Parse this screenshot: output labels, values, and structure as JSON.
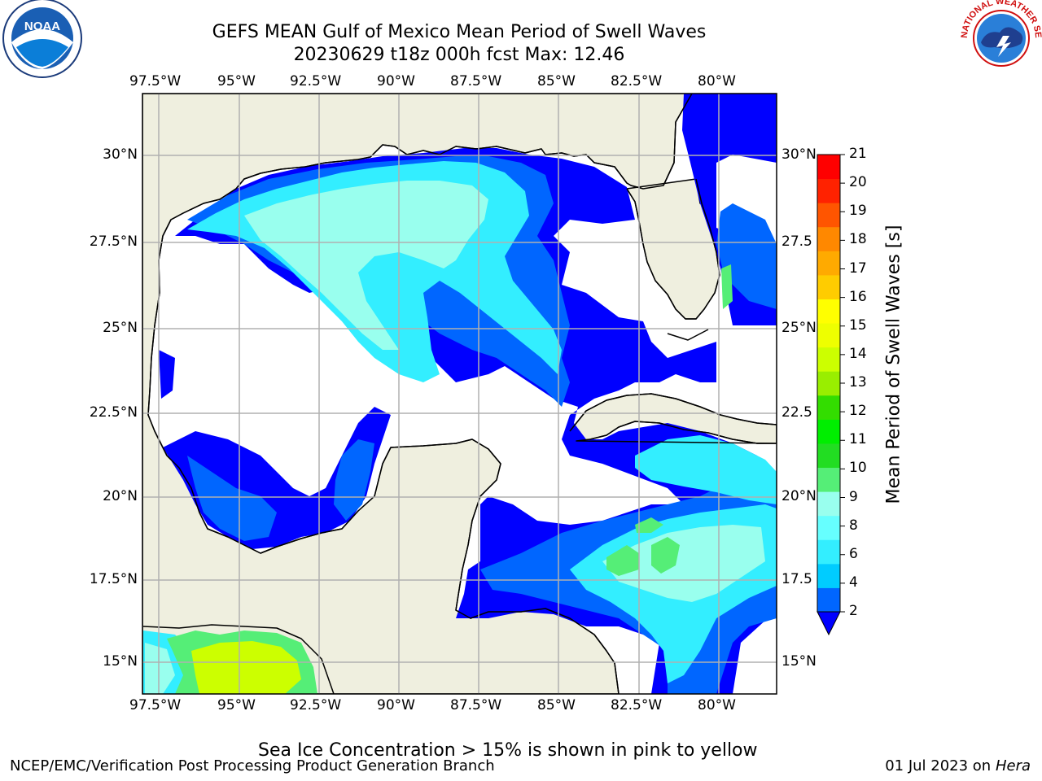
{
  "header": {
    "title_line1": "GEFS MEAN Gulf of Mexico Mean Period of Swell Waves",
    "title_line2": "20230629 t18z 000h fcst   Max: 12.46"
  },
  "logos": {
    "left_text": "NOAA",
    "right_text": "NATIONAL WEATHER SERVICE"
  },
  "map": {
    "lon_ticks": [
      "97.5°W",
      "95°W",
      "92.5°W",
      "90°W",
      "87.5°W",
      "85°W",
      "82.5°W",
      "80°W"
    ],
    "lat_ticks_left": [
      "30°N",
      "27.5°N",
      "25°N",
      "22.5°N",
      "20°N",
      "17.5°N",
      "15°N"
    ],
    "lat_ticks_right": [
      "30°N",
      "27.5",
      "25°N",
      "22.5",
      "20°N",
      "17.5",
      "15°N"
    ],
    "colors": {
      "land": "#efefdf",
      "coast": "#000000",
      "grid": "#b0b0b0"
    }
  },
  "colorbar": {
    "label": "Mean Period of Swell Waves [s]",
    "ticks": [
      "2",
      "4",
      "6",
      "8",
      "9",
      "10",
      "11",
      "12",
      "13",
      "14",
      "15",
      "16",
      "17",
      "18",
      "19",
      "20",
      "21"
    ],
    "colors": [
      "#0066ff",
      "#00ccff",
      "#33eeff",
      "#66ffff",
      "#99ffee",
      "#55ee77",
      "#22dd22",
      "#00ee00",
      "#33dd00",
      "#99ee00",
      "#ccff00",
      "#eeff00",
      "#ffff00",
      "#ffcc00",
      "#ffaa00",
      "#ff8800",
      "#ff5500",
      "#ff2200",
      "#ff0000"
    ]
  },
  "footer": {
    "subtitle": "Sea Ice Concentration > 15% is shown in pink to yellow",
    "left": "NCEP/EMC/Verification Post Processing Product Generation Branch",
    "right_date": "01 Jul 2023 on ",
    "right_host": "Hera"
  }
}
